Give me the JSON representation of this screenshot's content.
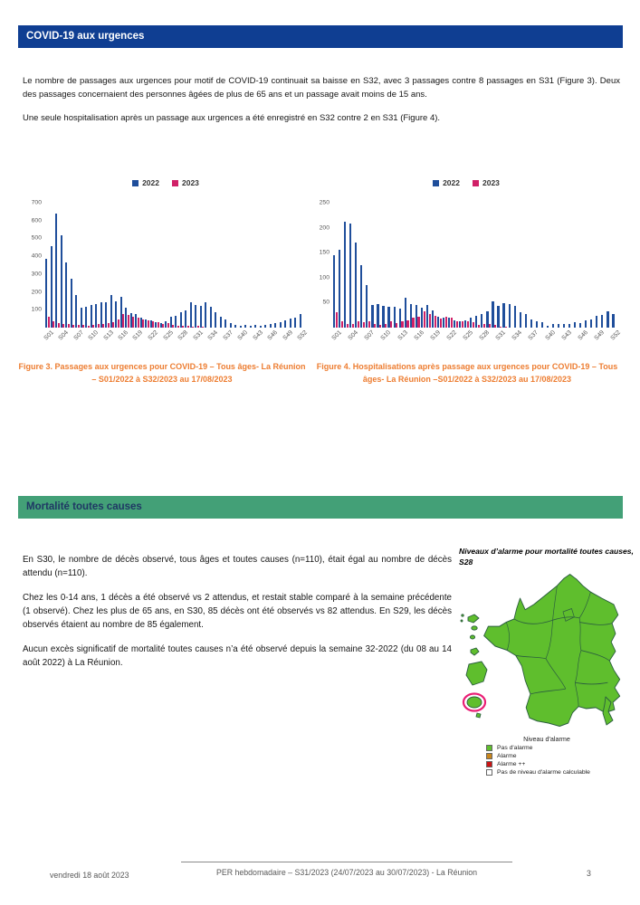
{
  "colors": {
    "header_blue": "#0F3E92",
    "header_green": "#43A077",
    "caption_orange": "#ED7D31",
    "series_2022": "#1F4E9B",
    "series_2023": "#D02067"
  },
  "sections": {
    "covid": {
      "title": "COVID-19 aux urgences",
      "paragraphs": [
        "Le nombre de passages aux urgences pour motif de COVID-19 continuait sa baisse en S32, avec 3 passages contre 8 passages en S31 (Figure 3). Deux des passages concernaient des personnes âgées de plus de 65 ans et un passage avait moins de 15 ans.",
        "Une seule hospitalisation après un passage aux urgences a été enregistré en S32 contre 2 en S31 (Figure 4)."
      ]
    },
    "mortalite": {
      "title": "Mortalité toutes causes",
      "paragraphs": [
        "En S30, le nombre de décès observé, tous âges et toutes causes (n=110), était égal au nombre de décès attendu (n=110).",
        "Chez les 0-14 ans, 1 décès a été observé vs 2 attendus, et restait stable comparé à la semaine précédente (1 observé). Chez les plus de 65 ans, en S30, 85 décès ont été observés vs 82 attendus. En S29, les décès observés étaient au nombre de 85 également.",
        "Aucun excès significatif de mortalité toutes causes n’a été observé depuis la semaine 32-2022 (du 08 au 14 août 2022) à La Réunion."
      ]
    }
  },
  "chart_data": [
    {
      "type": "bar",
      "title": "Figure 3. Passages aux urgences pour COVID-19 – Tous âges- La Réunion – S01/2022 à S32/2023 au 17/08/2023",
      "xlabel": "",
      "ylabel": "",
      "grid": false,
      "legend_position": "top",
      "ylim": [
        0,
        700
      ],
      "yticks": [
        100,
        200,
        300,
        400,
        500,
        600,
        700
      ],
      "categories": [
        "S01",
        "S02",
        "S03",
        "S04",
        "S05",
        "S06",
        "S07",
        "S08",
        "S09",
        "S10",
        "S11",
        "S12",
        "S13",
        "S14",
        "S15",
        "S16",
        "S17",
        "S18",
        "S19",
        "S20",
        "S21",
        "S22",
        "S23",
        "S24",
        "S25",
        "S26",
        "S27",
        "S28",
        "S29",
        "S30",
        "S31",
        "S32",
        "S33",
        "S34",
        "S35",
        "S36",
        "S37",
        "S38",
        "S39",
        "S40",
        "S41",
        "S42",
        "S43",
        "S44",
        "S45",
        "S46",
        "S47",
        "S48",
        "S49",
        "S50",
        "S51",
        "S52"
      ],
      "series": [
        {
          "name": "2022",
          "color": "#1F4E9B",
          "values": [
            385,
            455,
            640,
            515,
            365,
            275,
            182,
            110,
            117,
            125,
            131,
            140,
            142,
            183,
            147,
            172,
            113,
            80,
            74,
            55,
            48,
            42,
            30,
            26,
            35,
            60,
            66,
            85,
            96,
            140,
            126,
            120,
            140,
            118,
            85,
            60,
            45,
            25,
            17,
            12,
            13,
            11,
            14,
            12,
            15,
            19,
            26,
            33,
            41,
            49,
            58,
            76
          ]
        },
        {
          "name": "2023",
          "color": "#D02067",
          "values": [
            62,
            35,
            25,
            20,
            18,
            15,
            15,
            14,
            12,
            15,
            18,
            20,
            25,
            32,
            45,
            75,
            70,
            62,
            55,
            48,
            42,
            35,
            28,
            22,
            25,
            15,
            12,
            10,
            8,
            5,
            8,
            3
          ]
        }
      ]
    },
    {
      "type": "bar",
      "title": "Figure 4. Hospitalisations après passage aux urgences pour COVID-19 – Tous âges- La Réunion –S01/2022 à S32/2023 au 17/08/2023",
      "xlabel": "",
      "ylabel": "",
      "grid": false,
      "legend_position": "top",
      "ylim": [
        0,
        250
      ],
      "yticks": [
        50,
        100,
        150,
        200,
        250
      ],
      "categories": [
        "S01",
        "S02",
        "S03",
        "S04",
        "S05",
        "S06",
        "S07",
        "S08",
        "S09",
        "S10",
        "S11",
        "S12",
        "S13",
        "S14",
        "S15",
        "S16",
        "S17",
        "S18",
        "S19",
        "S20",
        "S21",
        "S22",
        "S23",
        "S24",
        "S25",
        "S26",
        "S27",
        "S28",
        "S29",
        "S30",
        "S31",
        "S32",
        "S33",
        "S34",
        "S35",
        "S36",
        "S37",
        "S38",
        "S39",
        "S40",
        "S41",
        "S42",
        "S43",
        "S44",
        "S45",
        "S46",
        "S47",
        "S48",
        "S49",
        "S50",
        "S51",
        "S52"
      ],
      "series": [
        {
          "name": "2022",
          "color": "#1F4E9B",
          "values": [
            145,
            155,
            212,
            208,
            170,
            125,
            85,
            45,
            47,
            43,
            42,
            42,
            38,
            59,
            47,
            46,
            40,
            45,
            34,
            22,
            20,
            20,
            14,
            13,
            15,
            20,
            24,
            27,
            33,
            52,
            43,
            49,
            48,
            43,
            30,
            28,
            16,
            12,
            10,
            4,
            7,
            7,
            8,
            8,
            10,
            9,
            15,
            17,
            23,
            25,
            32,
            28
          ]
        },
        {
          "name": "2023",
          "color": "#D02067",
          "values": [
            31,
            13,
            8,
            8,
            13,
            10,
            12,
            7,
            6,
            7,
            12,
            9,
            13,
            14,
            20,
            22,
            33,
            28,
            24,
            18,
            21,
            20,
            13,
            12,
            13,
            10,
            5,
            7,
            8,
            5,
            2,
            1
          ]
        }
      ]
    }
  ],
  "map_panel": {
    "title": "Niveaux d’alarme pour mortalité toutes causes, S28",
    "region_fill": "#5FBE2D",
    "region_border": "#2A5D3F",
    "highlight_circle_color": "#EA1E75",
    "legend_title": "Niveau d'alarme",
    "legend": [
      {
        "label": "Pas d'alarme",
        "color": "#5FBE2D"
      },
      {
        "label": "Alarme",
        "color": "#C8861C"
      },
      {
        "label": "Alarme ++",
        "color": "#CC1414"
      },
      {
        "label": "Pas de niveau d'alarme calculable",
        "color": "#FFFFFF"
      }
    ]
  },
  "footer": {
    "date": "vendredi 18 août 2023",
    "center": "PER hebdomadaire – S31/2023 (24/07/2023 au 30/07/2023) - La Réunion",
    "page": "3"
  }
}
